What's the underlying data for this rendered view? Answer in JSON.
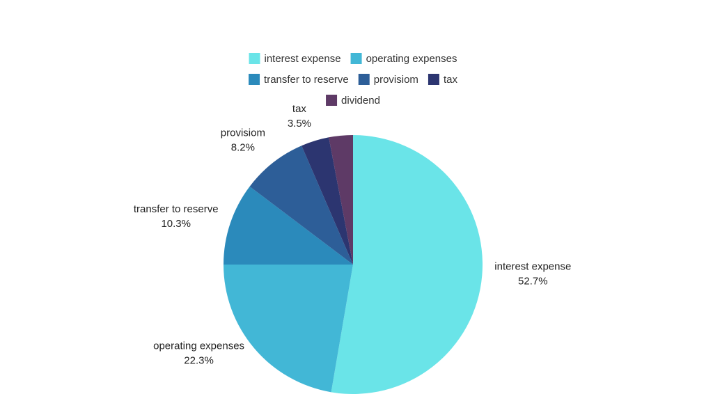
{
  "chart_data": {
    "type": "pie",
    "slices": [
      {
        "label": "interest expense",
        "value": 52.7,
        "value_label": "52.7%",
        "color": "#6ae4e8"
      },
      {
        "label": "operating expenses",
        "value": 22.3,
        "value_label": "22.3%",
        "color": "#42b7d6"
      },
      {
        "label": "transfer to reserve",
        "value": 10.3,
        "value_label": "10.3%",
        "color": "#2b8abb"
      },
      {
        "label": "provisiom",
        "value": 8.2,
        "value_label": "8.2%",
        "color": "#2d5e98"
      },
      {
        "label": "tax",
        "value": 3.5,
        "value_label": "3.5%",
        "color": "#2c3570"
      },
      {
        "label": "dividend",
        "value": 3.0,
        "value_label": "",
        "color": "#5e3a66"
      }
    ],
    "legend_position": "top",
    "start": "12 o'clock",
    "direction": "clockwise"
  }
}
